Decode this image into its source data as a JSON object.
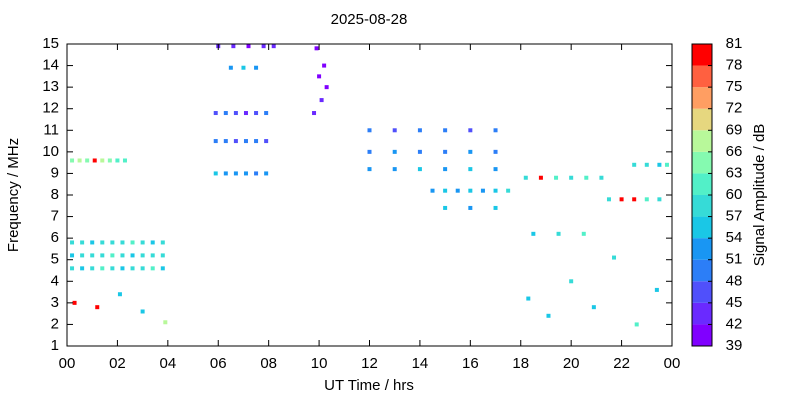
{
  "chart_data": {
    "type": "heatmap-scatter",
    "title": "2025-08-28",
    "x_label": "UT Time / hrs",
    "y_label": "Frequency / MHz",
    "colorbar_label": "Signal Amplitude / dB",
    "xlim": [
      0,
      24
    ],
    "xticks": [
      {
        "value": 0,
        "label": "00"
      },
      {
        "value": 2,
        "label": "02"
      },
      {
        "value": 4,
        "label": "04"
      },
      {
        "value": 6,
        "label": "06"
      },
      {
        "value": 8,
        "label": "08"
      },
      10,
      12,
      14,
      16,
      18,
      20,
      22,
      {
        "value": 24,
        "label": "00"
      }
    ],
    "ylim": [
      1,
      15
    ],
    "yticks": [
      1,
      2,
      3,
      4,
      5,
      6,
      7,
      8,
      9,
      10,
      11,
      12,
      13,
      14,
      15
    ],
    "zlim": [
      39,
      81
    ],
    "zticks": [
      39,
      42,
      45,
      48,
      51,
      54,
      57,
      60,
      63,
      66,
      69,
      72,
      75,
      78,
      81
    ],
    "colors": [
      "#8000ff",
      "#6a2aff",
      "#5050fb",
      "#2c7ef7",
      "#1996f3",
      "#1ac7e6",
      "#36dbd7",
      "#52f0c8",
      "#85fab0",
      "#b8f89a",
      "#e6d77f",
      "#ff9e62",
      "#ff6040",
      "#ff0000"
    ],
    "x": [
      0.2,
      0.6,
      1.0,
      1.4,
      1.8,
      2.2,
      2.6,
      3.0,
      3.4,
      3.8,
      0.2,
      0.6,
      1.0,
      1.4,
      1.8,
      2.2,
      2.6,
      3.0,
      3.4,
      3.8,
      0.2,
      0.6,
      1.0,
      1.4,
      1.8,
      2.2,
      2.6,
      3.0,
      3.4,
      3.8,
      0.2,
      0.5,
      0.8,
      1.1,
      1.4,
      1.7,
      2.0,
      2.3,
      5.9,
      6.3,
      6.7,
      7.1,
      7.5,
      7.9,
      5.9,
      6.3,
      6.7,
      7.1,
      7.5,
      7.9,
      5.9,
      6.3,
      6.7,
      7.1,
      7.5,
      7.9,
      6.0,
      6.6,
      7.2,
      7.8,
      8.2,
      6.5,
      7.0,
      7.5,
      9.9,
      10.0,
      10.1,
      10.2,
      9.8,
      10.3,
      12.0,
      13.0,
      14.0,
      15.0,
      16.0,
      17.0,
      12.0,
      13.0,
      14.0,
      15.0,
      16.0,
      17.0,
      12.0,
      13.0,
      14.0,
      15.0,
      16.0,
      17.0,
      14.5,
      15.0,
      15.5,
      16.0,
      16.5,
      17.0,
      17.5,
      15.0,
      16.0,
      17.0,
      18.2,
      18.8,
      19.4,
      20.0,
      20.6,
      21.2,
      21.5,
      22.0,
      22.5,
      23.0,
      23.5,
      22.5,
      23.0,
      23.5,
      23.8,
      18.3,
      19.1,
      20.0,
      20.9,
      21.7,
      22.6,
      23.4,
      18.5,
      19.5,
      20.5,
      0.3,
      1.2,
      2.1,
      3.0,
      3.9
    ],
    "y": [
      4.6,
      4.6,
      4.6,
      4.6,
      4.6,
      4.6,
      4.6,
      4.6,
      4.6,
      4.6,
      5.2,
      5.2,
      5.2,
      5.2,
      5.2,
      5.2,
      5.2,
      5.2,
      5.2,
      5.2,
      5.8,
      5.8,
      5.8,
      5.8,
      5.8,
      5.8,
      5.8,
      5.8,
      5.8,
      5.8,
      9.6,
      9.6,
      9.6,
      9.6,
      9.6,
      9.6,
      9.6,
      9.6,
      9.0,
      9.0,
      9.0,
      9.0,
      9.0,
      9.0,
      10.5,
      10.5,
      10.5,
      10.5,
      10.5,
      10.5,
      11.8,
      11.8,
      11.8,
      11.8,
      11.8,
      11.8,
      14.9,
      14.9,
      14.9,
      14.9,
      14.9,
      13.9,
      13.9,
      13.9,
      14.8,
      13.5,
      12.4,
      14.0,
      11.8,
      13.0,
      11,
      11,
      11,
      11,
      11,
      11,
      10,
      10,
      10,
      10,
      10,
      10,
      9.2,
      9.2,
      9.2,
      9.2,
      9.2,
      9.2,
      8.2,
      8.2,
      8.2,
      8.2,
      8.2,
      8.2,
      8.2,
      7.4,
      7.4,
      7.4,
      8.8,
      8.8,
      8.8,
      8.8,
      8.8,
      8.8,
      7.8,
      7.8,
      7.8,
      7.8,
      7.8,
      9.4,
      9.4,
      9.4,
      9.4,
      3.2,
      2.4,
      4.0,
      2.8,
      5.1,
      2.0,
      3.6,
      6.2,
      6.2,
      6.2,
      3.0,
      2.8,
      3.4,
      2.6,
      2.1
    ],
    "values": [
      57,
      54,
      57,
      60,
      57,
      54,
      57,
      57,
      60,
      54,
      54,
      57,
      57,
      57,
      60,
      57,
      54,
      57,
      57,
      57,
      57,
      57,
      54,
      57,
      57,
      57,
      60,
      57,
      54,
      57,
      63,
      66,
      63,
      78,
      66,
      63,
      60,
      60,
      54,
      51,
      51,
      51,
      48,
      51,
      48,
      48,
      45,
      48,
      48,
      45,
      45,
      48,
      45,
      42,
      45,
      48,
      42,
      42,
      39,
      42,
      42,
      51,
      54,
      51,
      39,
      39,
      42,
      39,
      42,
      39,
      48,
      45,
      48,
      48,
      45,
      48,
      48,
      51,
      48,
      48,
      51,
      48,
      51,
      51,
      54,
      51,
      54,
      51,
      51,
      54,
      51,
      54,
      51,
      54,
      57,
      54,
      51,
      54,
      57,
      78,
      60,
      57,
      60,
      57,
      57,
      78,
      81,
      60,
      57,
      57,
      57,
      54,
      60,
      54,
      54,
      57,
      54,
      57,
      60,
      54,
      54,
      57,
      60,
      78,
      81,
      54,
      54,
      66
    ]
  }
}
